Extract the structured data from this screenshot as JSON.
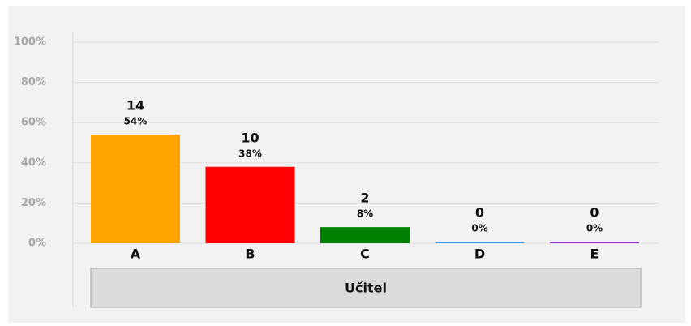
{
  "chart_data": {
    "type": "bar",
    "categories": [
      "A",
      "B",
      "C",
      "D",
      "E"
    ],
    "values": [
      54,
      38,
      8,
      0,
      0
    ],
    "value_labels": [
      "54%",
      "38%",
      "8%",
      "0%",
      "0%"
    ],
    "counts": [
      14,
      10,
      2,
      0,
      0
    ],
    "colors": [
      "#ffa500",
      "#ff0000",
      "#008000",
      "#3d9be9",
      "#9933cc"
    ],
    "x_label": "Učitel",
    "ylim": [
      0,
      100
    ],
    "yticks": [
      {
        "value": 0,
        "label": "0%"
      },
      {
        "value": 20,
        "label": "20%"
      },
      {
        "value": 40,
        "label": "40%"
      },
      {
        "value": 60,
        "label": "60%"
      },
      {
        "value": 80,
        "label": "80%"
      },
      {
        "value": 100,
        "label": "100%"
      }
    ],
    "grid": true
  }
}
